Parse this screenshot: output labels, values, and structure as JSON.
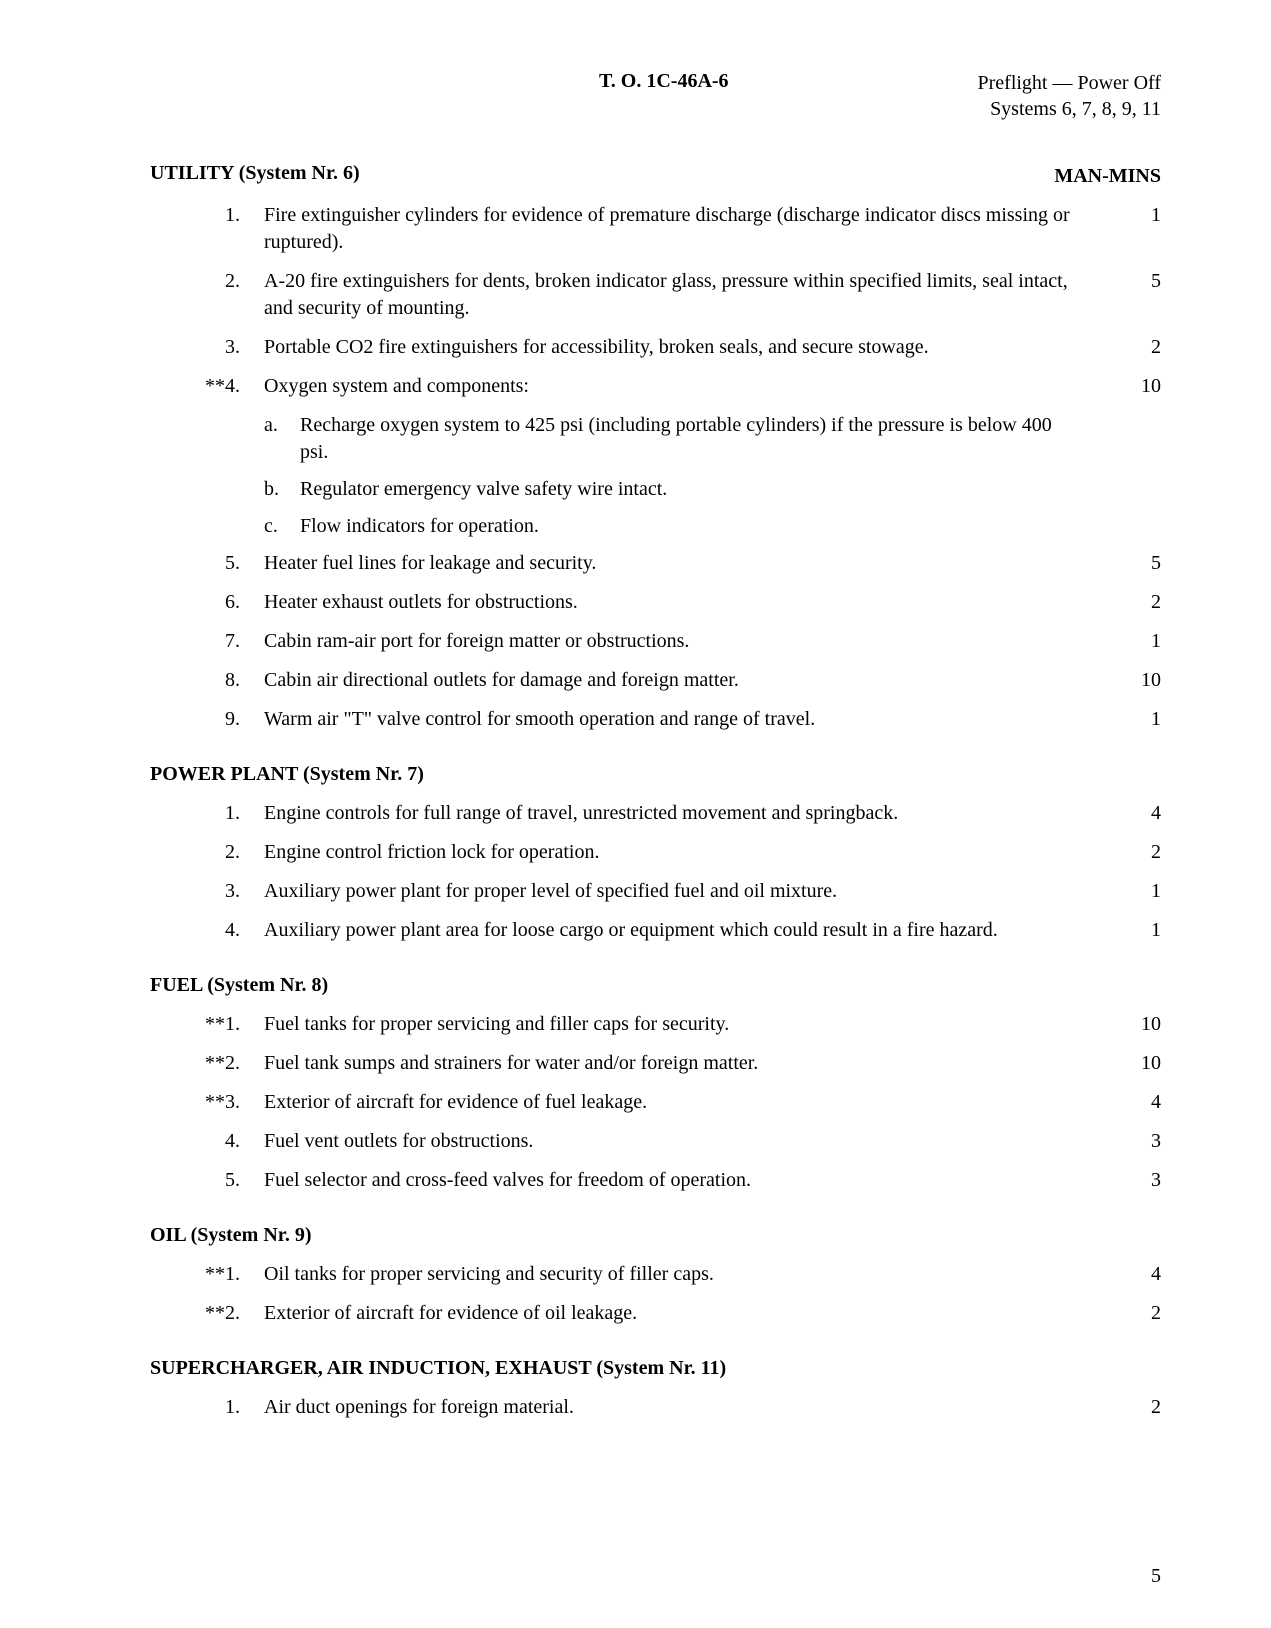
{
  "header": {
    "center": "T. O. 1C-46A-6",
    "right_line1": "Preflight — Power Off",
    "right_line2": "Systems 6, 7, 8, 9, 11"
  },
  "man_mins_label": "MAN-MINS",
  "page_number": "5",
  "sections": [
    {
      "title": "UTILITY (System Nr. 6)",
      "show_man_mins_header": true,
      "items": [
        {
          "num": "1.",
          "text": "Fire extinguisher cylinders for evidence of premature discharge (discharge indicator discs missing or ruptured).",
          "mins": "1"
        },
        {
          "num": "2.",
          "text": "A-20 fire extinguishers for dents, broken indicator glass, pressure within specified limits, seal intact, and security of mounting.",
          "mins": "5"
        },
        {
          "num": "3.",
          "text": "Portable CO2 fire extinguishers for accessibility, broken seals, and secure stowage.",
          "mins": "2"
        },
        {
          "num": "**4.",
          "text": "Oxygen system and components:",
          "mins": "10",
          "subs": [
            {
              "letter": "a.",
              "text": "Recharge oxygen system to 425 psi (including portable cylinders) if the pressure is below 400 psi."
            },
            {
              "letter": "b.",
              "text": "Regulator emergency valve safety wire intact."
            },
            {
              "letter": "c.",
              "text": "Flow indicators for operation."
            }
          ]
        },
        {
          "num": "5.",
          "text": "Heater fuel lines for leakage and security.",
          "mins": "5"
        },
        {
          "num": "6.",
          "text": "Heater exhaust outlets for obstructions.",
          "mins": "2"
        },
        {
          "num": "7.",
          "text": "Cabin ram-air port for foreign matter or obstructions.",
          "mins": "1"
        },
        {
          "num": "8.",
          "text": "Cabin air directional outlets for damage and foreign matter.",
          "mins": "10"
        },
        {
          "num": "9.",
          "text": "Warm air \"T\" valve control for smooth operation and range of travel.",
          "mins": "1"
        }
      ]
    },
    {
      "title": "POWER PLANT (System Nr. 7)",
      "items": [
        {
          "num": "1.",
          "text": "Engine controls for full range of travel, unrestricted movement and springback.",
          "mins": "4"
        },
        {
          "num": "2.",
          "text": "Engine control friction lock for operation.",
          "mins": "2"
        },
        {
          "num": "3.",
          "text": "Auxiliary power plant for proper level of specified fuel and oil mixture.",
          "mins": "1"
        },
        {
          "num": "4.",
          "text": "Auxiliary power plant area for loose cargo or equipment which could result in a fire hazard.",
          "mins": "1"
        }
      ]
    },
    {
      "title": "FUEL (System Nr. 8)",
      "items": [
        {
          "num": "**1.",
          "text": "Fuel tanks for proper servicing and filler caps for security.",
          "mins": "10"
        },
        {
          "num": "**2.",
          "text": "Fuel tank sumps and strainers for water and/or foreign matter.",
          "mins": "10"
        },
        {
          "num": "**3.",
          "text": "Exterior of aircraft for evidence of fuel leakage.",
          "mins": "4"
        },
        {
          "num": "4.",
          "text": "Fuel vent outlets for obstructions.",
          "mins": "3"
        },
        {
          "num": "5.",
          "text": "Fuel selector and cross-feed valves for freedom of operation.",
          "mins": "3"
        }
      ]
    },
    {
      "title": "OIL (System Nr. 9)",
      "items": [
        {
          "num": "**1.",
          "text": "Oil tanks for proper servicing and security of filler caps.",
          "mins": "4"
        },
        {
          "num": "**2.",
          "text": "Exterior of aircraft for evidence of oil leakage.",
          "mins": "2"
        }
      ]
    },
    {
      "title": "SUPERCHARGER, AIR INDUCTION, EXHAUST (System Nr. 11)",
      "items": [
        {
          "num": "1.",
          "text": "Air duct openings for foreign material.",
          "mins": "2"
        }
      ]
    }
  ]
}
